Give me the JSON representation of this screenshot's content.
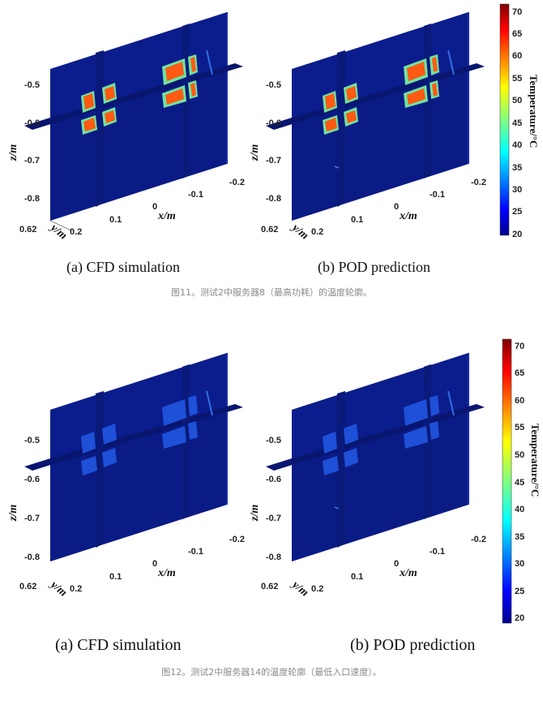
{
  "figures": [
    {
      "panels": [
        {
          "caption": "(a) CFD simulation",
          "hot": true,
          "hint": false
        },
        {
          "caption": "(b) POD prediction",
          "hot": true,
          "hint": true
        }
      ],
      "caption": "图11。测试2中服务器8（最高功耗）的温度轮廓。"
    },
    {
      "panels": [
        {
          "caption": "(a) CFD simulation",
          "hot": false,
          "hint": false
        },
        {
          "caption": "(b) POD prediction",
          "hot": false,
          "hint": true
        }
      ],
      "caption": "图12。测试2中服务器14的温度轮廓（最低入口速度）。"
    }
  ],
  "axes": {
    "z_label": "z/m",
    "x_label": "x/m",
    "y_label": "y/m",
    "z_ticks": [
      "-0.5",
      "-0.6",
      "-0.7",
      "-0.8"
    ],
    "x_ticks": [
      "0.1",
      "0",
      "-0.1",
      "-0.2"
    ],
    "y_ticks": [
      "0.62",
      "0.2"
    ]
  },
  "colorbar": {
    "label": "Temperature/°C",
    "ticks": [
      "70",
      "65",
      "60",
      "55",
      "50",
      "45",
      "40",
      "35",
      "30",
      "25",
      "20"
    ],
    "range": [
      20,
      72
    ],
    "colormap": "jet"
  },
  "colors": {
    "background_plane": "#0b1d8c",
    "hot_block": "#ff5a14",
    "hot_block_edge": "#6fe4a0",
    "cool_block": "#1e50d8"
  }
}
